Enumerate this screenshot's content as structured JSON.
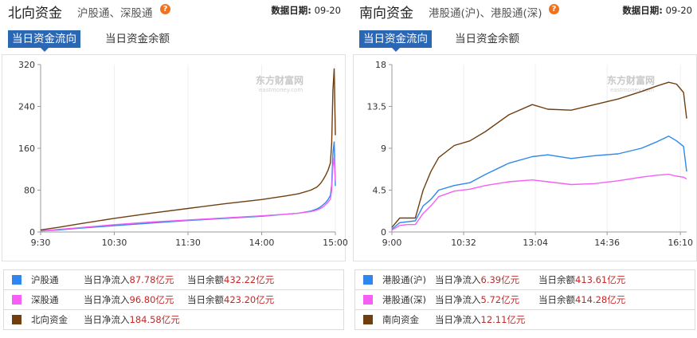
{
  "north": {
    "title": "北向资金",
    "subtitle": "沪股通、深股通",
    "help_icon": "question-icon",
    "date_label": "数据日期:",
    "date_value": "09-20",
    "tabs": [
      "当日资金流向",
      "当日资金余额"
    ],
    "active_tab": 0,
    "watermark": "东方财富网",
    "watermark_sub": "eastmoney.com",
    "legend": [
      {
        "name": "沪股通",
        "color": "#2f86ef",
        "flow_label": "当日净流入",
        "flow_value": "87.78亿元",
        "balance_label": "当日余额",
        "balance_value": "432.22亿元"
      },
      {
        "name": "深股通",
        "color": "#f55ff5",
        "flow_label": "当日净流入",
        "flow_value": "96.80亿元",
        "balance_label": "当日余额",
        "balance_value": "423.20亿元"
      },
      {
        "name": "北向资金",
        "color": "#6f3f10",
        "flow_label": "当日净流入",
        "flow_value": "184.58亿元",
        "balance_label": "",
        "balance_value": ""
      }
    ],
    "chart_data": {
      "type": "line",
      "x_ticks": [
        "9:30",
        "10:30",
        "11:30",
        "14:00",
        "15:00"
      ],
      "x_domain_minutes": [
        0,
        240
      ],
      "x_tick_minutes": [
        0,
        60,
        120,
        180,
        240
      ],
      "y_ticks": [
        0,
        80,
        160,
        240,
        320
      ],
      "ylim": [
        0,
        320
      ],
      "series": [
        {
          "name": "沪股通",
          "color": "#2f86ef",
          "x": [
            0,
            15,
            30,
            60,
            90,
            120,
            150,
            180,
            200,
            210,
            220,
            225,
            228,
            230,
            232,
            234,
            236,
            237,
            238,
            239,
            240
          ],
          "y": [
            2,
            4,
            7,
            12,
            17,
            22,
            26,
            30,
            34,
            36,
            40,
            44,
            48,
            52,
            56,
            62,
            70,
            90,
            150,
            172,
            88
          ]
        },
        {
          "name": "深股通",
          "color": "#f55ff5",
          "x": [
            0,
            15,
            30,
            60,
            90,
            120,
            150,
            180,
            200,
            210,
            220,
            225,
            228,
            230,
            232,
            234,
            236,
            237,
            238,
            239,
            240
          ],
          "y": [
            2,
            5,
            8,
            14,
            19,
            23,
            27,
            31,
            34,
            36,
            39,
            42,
            45,
            48,
            52,
            57,
            63,
            80,
            125,
            142,
            97
          ]
        },
        {
          "name": "北向资金",
          "color": "#6f3f10",
          "x": [
            0,
            15,
            30,
            60,
            90,
            120,
            150,
            180,
            200,
            210,
            220,
            225,
            228,
            230,
            232,
            234,
            236,
            237,
            238,
            239,
            240
          ],
          "y": [
            4,
            9,
            15,
            26,
            36,
            45,
            54,
            62,
            69,
            73,
            80,
            86,
            93,
            100,
            108,
            118,
            132,
            170,
            270,
            312,
            185
          ]
        }
      ]
    }
  },
  "south": {
    "title": "南向资金",
    "subtitle": "港股通(沪)、港股通(深)",
    "help_icon": "question-icon",
    "date_label": "数据日期:",
    "date_value": "09-20",
    "tabs": [
      "当日资金流向",
      "当日资金余额"
    ],
    "active_tab": 0,
    "watermark": "东方财富网",
    "watermark_sub": "eastmoney.com",
    "legend": [
      {
        "name": "港股通(沪)",
        "color": "#2f86ef",
        "flow_label": "当日净流入",
        "flow_value": "6.39亿元",
        "balance_label": "当日余额",
        "balance_value": "413.61亿元"
      },
      {
        "name": "港股通(深)",
        "color": "#f55ff5",
        "flow_label": "当日净流入",
        "flow_value": "5.72亿元",
        "balance_label": "当日余额",
        "balance_value": "414.28亿元"
      },
      {
        "name": "南向资金",
        "color": "#6f3f10",
        "flow_label": "当日净流入",
        "flow_value": "12.11亿元",
        "balance_label": "",
        "balance_value": ""
      }
    ],
    "chart_data": {
      "type": "line",
      "x_ticks": [
        "9:00",
        "10:32",
        "13:04",
        "14:36",
        "16:10"
      ],
      "x_domain_minutes": [
        0,
        378
      ],
      "x_tick_minutes": [
        0,
        92,
        184,
        276,
        370
      ],
      "y_ticks": [
        0,
        4.5,
        9,
        13.5,
        18
      ],
      "ylim": [
        0,
        18
      ],
      "series": [
        {
          "name": "港股通(沪)",
          "color": "#2f86ef",
          "x": [
            0,
            10,
            20,
            30,
            40,
            50,
            60,
            80,
            100,
            120,
            150,
            180,
            200,
            230,
            260,
            290,
            320,
            340,
            355,
            365,
            374,
            378
          ],
          "y": [
            0.3,
            1.0,
            1.1,
            1.2,
            2.8,
            3.5,
            4.5,
            5.0,
            5.3,
            6.2,
            7.4,
            8.1,
            8.3,
            7.9,
            8.2,
            8.4,
            9.0,
            9.7,
            10.3,
            9.8,
            9.2,
            6.5
          ]
        },
        {
          "name": "港股通(深)",
          "color": "#f55ff5",
          "x": [
            0,
            10,
            20,
            30,
            40,
            50,
            60,
            80,
            100,
            120,
            150,
            180,
            200,
            230,
            260,
            290,
            320,
            340,
            355,
            365,
            374,
            378
          ],
          "y": [
            0.2,
            0.7,
            0.8,
            0.8,
            2.0,
            2.8,
            3.8,
            4.4,
            4.6,
            5.0,
            5.4,
            5.6,
            5.4,
            5.1,
            5.2,
            5.5,
            5.9,
            6.1,
            6.2,
            6.0,
            5.9,
            5.7
          ]
        },
        {
          "name": "南向资金",
          "color": "#6f3f10",
          "x": [
            0,
            10,
            20,
            30,
            40,
            50,
            60,
            80,
            100,
            120,
            150,
            180,
            200,
            230,
            260,
            290,
            320,
            340,
            355,
            365,
            374,
            378
          ],
          "y": [
            0.5,
            1.5,
            1.5,
            1.5,
            4.5,
            6.5,
            8.0,
            9.3,
            9.8,
            10.8,
            12.6,
            13.7,
            13.2,
            13.1,
            13.7,
            14.3,
            15.1,
            15.7,
            16.1,
            15.9,
            15.0,
            12.2
          ]
        }
      ]
    }
  }
}
